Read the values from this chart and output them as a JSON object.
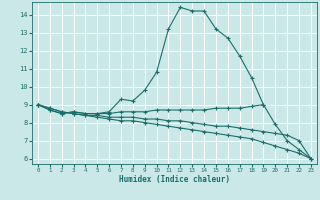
{
  "xlabel": "Humidex (Indice chaleur)",
  "bg_color": "#cbe8e8",
  "grid_color": "#ffffff",
  "line_color": "#1a6e6a",
  "xlim": [
    -0.5,
    23.5
  ],
  "ylim": [
    5.7,
    14.7
  ],
  "yticks": [
    6,
    7,
    8,
    9,
    10,
    11,
    12,
    13,
    14
  ],
  "xticks": [
    0,
    1,
    2,
    3,
    4,
    5,
    6,
    7,
    8,
    9,
    10,
    11,
    12,
    13,
    14,
    15,
    16,
    17,
    18,
    19,
    20,
    21,
    22,
    23
  ],
  "series": [
    {
      "x": [
        0,
        1,
        2,
        3,
        4,
        5,
        6,
        7,
        8,
        9,
        10,
        11,
        12,
        13,
        14,
        15,
        16,
        17,
        18,
        19,
        20,
        21,
        22,
        23
      ],
      "y": [
        9.0,
        8.7,
        8.5,
        8.6,
        8.5,
        8.5,
        8.6,
        9.3,
        9.2,
        9.8,
        10.8,
        13.2,
        14.4,
        14.2,
        14.2,
        13.2,
        12.7,
        11.7,
        10.5,
        9.0,
        7.9,
        7.0,
        6.5,
        6.0
      ]
    },
    {
      "x": [
        0,
        1,
        2,
        3,
        4,
        5,
        6,
        7,
        8,
        9,
        10,
        11,
        12,
        13,
        14,
        15,
        16,
        17,
        18,
        19
      ],
      "y": [
        9.0,
        8.7,
        8.5,
        8.6,
        8.5,
        8.5,
        8.5,
        8.6,
        8.6,
        8.6,
        8.7,
        8.7,
        8.7,
        8.7,
        8.7,
        8.8,
        8.8,
        8.8,
        8.9,
        9.0
      ]
    },
    {
      "x": [
        0,
        1,
        2,
        3,
        4,
        5,
        6,
        7,
        8,
        9,
        10,
        11,
        12,
        13,
        14,
        15,
        16,
        17,
        18,
        19,
        20,
        21,
        22,
        23
      ],
      "y": [
        9.0,
        8.8,
        8.6,
        8.5,
        8.4,
        8.4,
        8.3,
        8.3,
        8.3,
        8.2,
        8.2,
        8.1,
        8.1,
        8.0,
        7.9,
        7.8,
        7.8,
        7.7,
        7.6,
        7.5,
        7.4,
        7.3,
        7.0,
        6.0
      ]
    },
    {
      "x": [
        0,
        1,
        2,
        3,
        4,
        5,
        6,
        7,
        8,
        9,
        10,
        11,
        12,
        13,
        14,
        15,
        16,
        17,
        18,
        19,
        20,
        21,
        22,
        23
      ],
      "y": [
        9.0,
        8.8,
        8.6,
        8.5,
        8.4,
        8.3,
        8.2,
        8.1,
        8.1,
        8.0,
        7.9,
        7.8,
        7.7,
        7.6,
        7.5,
        7.4,
        7.3,
        7.2,
        7.1,
        6.9,
        6.7,
        6.5,
        6.3,
        6.0
      ]
    }
  ]
}
